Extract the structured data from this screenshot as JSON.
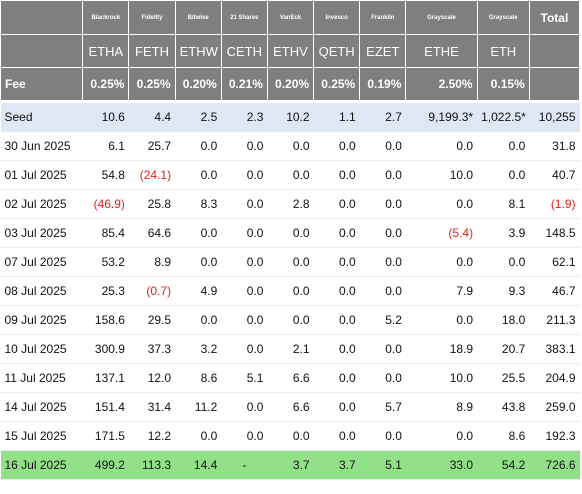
{
  "header": {
    "issuers": [
      "Blackrock",
      "Fidelity",
      "Bitwise",
      "21 Shares",
      "VanEck",
      "Invesco",
      "Franklin",
      "Grayscale",
      "Grayscale"
    ],
    "tickers": [
      "ETHA",
      "FETH",
      "ETHW",
      "CETH",
      "ETHV",
      "QETH",
      "EZET",
      "ETHE",
      "ETH"
    ],
    "total_label": "Total",
    "fee_label": "Fee",
    "fees": [
      "0.25%",
      "0.25%",
      "0.20%",
      "0.21%",
      "0.20%",
      "0.25%",
      "0.19%",
      "2.50%",
      "0.15%"
    ]
  },
  "rows": [
    {
      "date": "Seed",
      "values": [
        "10.6",
        "4.4",
        "2.5",
        "2.3",
        "10.2",
        "1.1",
        "2.7",
        "9,199.3*",
        "1,022.5*"
      ],
      "total": "10,255"
    },
    {
      "date": "30 Jun 2025",
      "values": [
        "6.1",
        "25.7",
        "0.0",
        "0.0",
        "0.0",
        "0.0",
        "0.0",
        "0.0",
        "0.0"
      ],
      "total": "31.8"
    },
    {
      "date": "01 Jul 2025",
      "values": [
        "54.8",
        "(24.1)",
        "0.0",
        "0.0",
        "0.0",
        "0.0",
        "0.0",
        "10.0",
        "0.0"
      ],
      "total": "40.7"
    },
    {
      "date": "02 Jul 2025",
      "values": [
        "(46.9)",
        "25.8",
        "8.3",
        "0.0",
        "2.8",
        "0.0",
        "0.0",
        "0.0",
        "8.1"
      ],
      "total": "(1.9)"
    },
    {
      "date": "03 Jul 2025",
      "values": [
        "85.4",
        "64.6",
        "0.0",
        "0.0",
        "0.0",
        "0.0",
        "0.0",
        "(5.4)",
        "3.9"
      ],
      "total": "148.5"
    },
    {
      "date": "07 Jul 2025",
      "values": [
        "53.2",
        "8.9",
        "0.0",
        "0.0",
        "0.0",
        "0.0",
        "0.0",
        "0.0",
        "0.0"
      ],
      "total": "62.1"
    },
    {
      "date": "08 Jul 2025",
      "values": [
        "25.3",
        "(0.7)",
        "4.9",
        "0.0",
        "0.0",
        "0.0",
        "0.0",
        "7.9",
        "9.3"
      ],
      "total": "46.7"
    },
    {
      "date": "09 Jul 2025",
      "values": [
        "158.6",
        "29.5",
        "0.0",
        "0.0",
        "0.0",
        "0.0",
        "5.2",
        "0.0",
        "18.0"
      ],
      "total": "211.3"
    },
    {
      "date": "10 Jul 2025",
      "values": [
        "300.9",
        "37.3",
        "3.2",
        "0.0",
        "2.1",
        "0.0",
        "0.0",
        "18.9",
        "20.7"
      ],
      "total": "383.1"
    },
    {
      "date": "11 Jul 2025",
      "values": [
        "137.1",
        "12.0",
        "8.6",
        "5.1",
        "6.6",
        "0.0",
        "0.0",
        "10.0",
        "25.5"
      ],
      "total": "204.9"
    },
    {
      "date": "14 Jul 2025",
      "values": [
        "151.4",
        "31.4",
        "11.2",
        "0.0",
        "6.6",
        "0.0",
        "5.7",
        "8.9",
        "43.8"
      ],
      "total": "259.0"
    },
    {
      "date": "15 Jul 2025",
      "values": [
        "171.5",
        "12.2",
        "0.0",
        "0.0",
        "0.0",
        "0.0",
        "0.0",
        "0.0",
        "8.6"
      ],
      "total": "192.3"
    },
    {
      "date": "16 Jul 2025",
      "values": [
        "499.2",
        "113.3",
        "14.4",
        "-",
        "3.7",
        "3.7",
        "5.1",
        "33.0",
        "54.2"
      ],
      "total": "726.6"
    }
  ],
  "colors": {
    "header_bg": "#7f7f7f",
    "seed_row_bg": "#dfe6f5",
    "latest_row_bg": "#92e087",
    "negative_text": "#e0201b"
  }
}
